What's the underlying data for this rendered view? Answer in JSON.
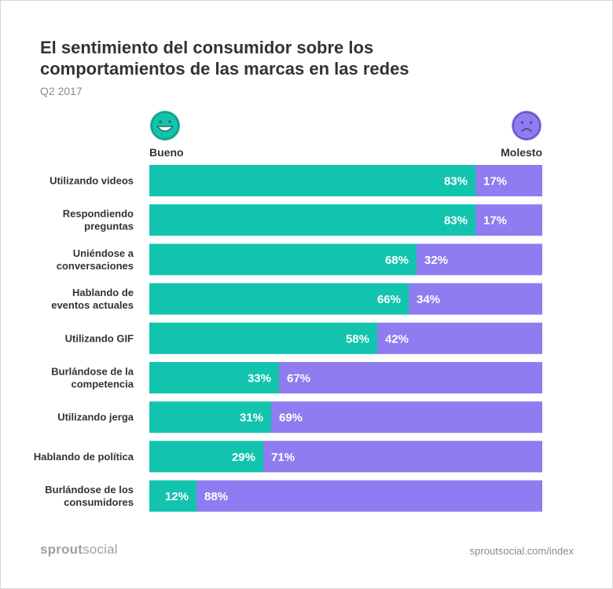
{
  "chart_data": {
    "type": "bar",
    "stacked": true,
    "orientation": "horizontal",
    "title_lines": [
      "El sentimiento del consumidor sobre los",
      "comportamientos de las marcas en las redes"
    ],
    "subtitle": "Q2 2017",
    "legend": [
      {
        "name": "Bueno",
        "color": "#12c4ad",
        "icon": "happy-face-icon"
      },
      {
        "name": "Molesto",
        "color": "#8e7cf0",
        "icon": "sad-face-icon"
      }
    ],
    "categories": [
      "Utilizando videos",
      "Respondiendo\npreguntas",
      "Uniéndose a\nconversaciones",
      "Hablando de\neventos actuales",
      "Utilizando GIF",
      "Burlándose de la\ncompetencia",
      "Utilizando jerga",
      "Hablando de política",
      "Burlándose de los\nconsumidores"
    ],
    "series": [
      {
        "name": "Bueno",
        "values": [
          83,
          83,
          68,
          66,
          58,
          33,
          31,
          29,
          12
        ]
      },
      {
        "name": "Molesto",
        "values": [
          17,
          17,
          32,
          34,
          42,
          67,
          69,
          71,
          88
        ]
      }
    ],
    "value_suffix": "%",
    "xlim": [
      0,
      100
    ]
  },
  "footer": {
    "brand_bold": "sprout",
    "brand_light": "social",
    "url": "sproutsocial.com/index"
  },
  "colors": {
    "good": "#12c4ad",
    "bad": "#8e7cf0",
    "label_text": "#333333"
  }
}
